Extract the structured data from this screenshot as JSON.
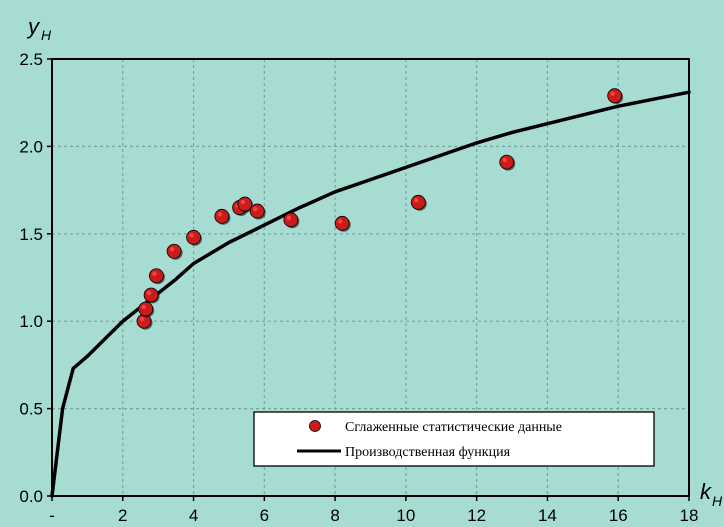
{
  "chart_data": {
    "type": "scatter",
    "x_axis": {
      "symbol": "k",
      "subscript": "Н",
      "range": [
        0,
        18
      ],
      "ticks": [
        0,
        2,
        4,
        6,
        8,
        10,
        12,
        14,
        16,
        18
      ],
      "tick_labels": [
        "-",
        "2",
        "4",
        "6",
        "8",
        "10",
        "12",
        "14",
        "16",
        "18"
      ]
    },
    "y_axis": {
      "symbol": "y",
      "subscript": "Н",
      "range": [
        0,
        2.5
      ],
      "ticks": [
        0,
        0.5,
        1,
        1.5,
        2,
        2.5
      ],
      "tick_labels": [
        "0.0",
        "0.5",
        "1.0",
        "1.5",
        "2.0",
        "2.5"
      ]
    },
    "grid": true,
    "legend_position": "bottom-right",
    "series": [
      {
        "name": "Сглаженные статистические данные",
        "kind": "scatter",
        "color": "#cc1b1b",
        "points": [
          [
            2.6,
            1.0
          ],
          [
            2.65,
            1.07
          ],
          [
            2.8,
            1.15
          ],
          [
            2.95,
            1.26
          ],
          [
            3.45,
            1.4
          ],
          [
            4.0,
            1.48
          ],
          [
            4.8,
            1.6
          ],
          [
            5.3,
            1.65
          ],
          [
            5.45,
            1.67
          ],
          [
            5.8,
            1.63
          ],
          [
            6.75,
            1.58
          ],
          [
            8.2,
            1.56
          ],
          [
            10.35,
            1.68
          ],
          [
            12.85,
            1.91
          ],
          [
            15.9,
            2.29
          ]
        ]
      },
      {
        "name": "Производственная функция",
        "kind": "line",
        "color": "#000000",
        "points": [
          [
            0.0,
            0.0
          ],
          [
            0.3,
            0.5
          ],
          [
            0.6,
            0.73
          ],
          [
            1.0,
            0.8
          ],
          [
            1.5,
            0.9
          ],
          [
            2.0,
            1.0
          ],
          [
            2.5,
            1.08
          ],
          [
            3.0,
            1.16
          ],
          [
            3.5,
            1.24
          ],
          [
            4.0,
            1.33
          ],
          [
            5.0,
            1.45
          ],
          [
            6.0,
            1.55
          ],
          [
            7.0,
            1.65
          ],
          [
            8.0,
            1.74
          ],
          [
            9.0,
            1.81
          ],
          [
            10.0,
            1.88
          ],
          [
            11.0,
            1.95
          ],
          [
            12.0,
            2.02
          ],
          [
            13.0,
            2.08
          ],
          [
            14.0,
            2.13
          ],
          [
            15.0,
            2.18
          ],
          [
            16.0,
            2.23
          ],
          [
            17.0,
            2.27
          ],
          [
            18.0,
            2.31
          ]
        ]
      }
    ]
  },
  "colors": {
    "background": "#a7dcd2",
    "grid": "#7ba39b",
    "axes": "#000000",
    "marker": "#cc1b1b",
    "marker_highlight": "#ff5a4a",
    "legend_background": "#ffffff"
  }
}
